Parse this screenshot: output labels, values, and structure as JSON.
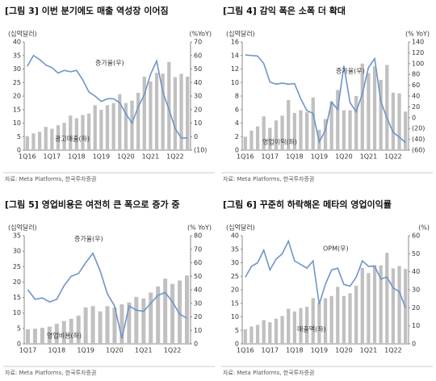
{
  "chart_data": [
    {
      "type": "combo",
      "title": "[그림 3] 이번 분기에도 매출 역성장 이어짐",
      "ylabel": "(십억달러)",
      "y2label": "(%YoY)",
      "source": "자료: Meta Platforms, 한국투자증권",
      "categories": [
        "1Q16",
        null,
        null,
        null,
        "1Q17",
        null,
        null,
        null,
        "1Q18",
        null,
        null,
        null,
        "1Q19",
        null,
        null,
        null,
        "1Q20",
        null,
        null,
        null,
        "1Q21",
        null,
        null,
        null,
        "1Q22",
        null,
        null
      ],
      "series": [
        {
          "name": "광고매출(좌)",
          "kind": "bar",
          "color": "#c0c0c0",
          "values": [
            5.2,
            6.2,
            6.8,
            8.6,
            7.9,
            9.2,
            10.1,
            12.8,
            11.8,
            13.0,
            13.5,
            16.6,
            14.9,
            16.6,
            17.4,
            20.7,
            17.4,
            18.3,
            21.2,
            27.2,
            25.4,
            28.6,
            28.3,
            32.6,
            27.0,
            28.2,
            27.2
          ]
        },
        {
          "name": "증가율(우)",
          "kind": "line",
          "axis": "y2",
          "color": "#6f94c8",
          "values": [
            52,
            60,
            57,
            53,
            51,
            47,
            49,
            48,
            49,
            42,
            33,
            30,
            26,
            28,
            28,
            25,
            17,
            10,
            22,
            31,
            46,
            56,
            33,
            20,
            6,
            -1,
            -1
          ]
        }
      ],
      "ylim": [
        0,
        40
      ],
      "yticks": [
        0,
        5,
        10,
        15,
        20,
        25,
        30,
        35,
        40
      ],
      "y2lim": [
        -10,
        70
      ],
      "y2ticks": [
        {
          "value": -10,
          "label": "(10)"
        },
        0,
        10,
        20,
        30,
        40,
        50,
        60,
        70
      ]
    },
    {
      "type": "combo",
      "title": "[그림 4] 감익 폭은 소폭 더 확대",
      "ylabel": "(십억달러)",
      "y2label": "(% YoY)",
      "source": "자료: Meta Platforms, 한국투자증권",
      "categories": [
        "1Q16",
        null,
        null,
        null,
        "1Q17",
        null,
        null,
        null,
        "1Q18",
        null,
        null,
        null,
        "1Q19",
        null,
        null,
        null,
        "1Q20",
        null,
        null,
        null,
        "1Q21",
        null,
        null,
        null,
        "1Q22",
        null,
        null
      ],
      "series": [
        {
          "name": "영업이익(좌)",
          "kind": "bar",
          "color": "#c0c0c0",
          "values": [
            2.0,
            2.9,
            3.5,
            5.0,
            3.3,
            4.4,
            5.1,
            7.4,
            5.5,
            5.9,
            5.6,
            7.8,
            3.0,
            4.6,
            7.2,
            8.9,
            5.9,
            5.9,
            8.0,
            12.8,
            11.4,
            12.4,
            10.4,
            12.6,
            8.5,
            8.4,
            5.7
          ]
        },
        {
          "name": "증가율(우)",
          "kind": "line",
          "axis": "y2",
          "color": "#6f94c8",
          "values": [
            116,
            115,
            114,
            100,
            66,
            62,
            64,
            62,
            63,
            35,
            13,
            8,
            -45,
            -23,
            29,
            15,
            96,
            28,
            11,
            44,
            93,
            109,
            30,
            -1,
            -27,
            -36,
            -46
          ]
        }
      ],
      "ylim": [
        0,
        16
      ],
      "yticks": [
        0,
        2,
        4,
        6,
        8,
        10,
        12,
        14,
        16
      ],
      "y2lim": [
        -60,
        140
      ],
      "y2ticks": [
        {
          "value": -60,
          "label": "(60)"
        },
        {
          "value": -40,
          "label": "(40)"
        },
        {
          "value": -20,
          "label": "(20)"
        },
        0,
        20,
        40,
        60,
        80,
        100,
        120,
        140
      ]
    },
    {
      "type": "combo",
      "title": "[그림 5] 영업비용은 여전히 큰 폭으로 증가 중",
      "ylabel": "(십억달러)",
      "y2label": "(% YoY)",
      "source": "자료: Meta Platforms, 한국투자증권",
      "categories": [
        "1Q17",
        null,
        null,
        null,
        "1Q18",
        null,
        null,
        null,
        "1Q19",
        null,
        null,
        null,
        "1Q20",
        null,
        null,
        null,
        "1Q21",
        null,
        null,
        null,
        "1Q22",
        null,
        null
      ],
      "series": [
        {
          "name": "영업비용(좌)",
          "kind": "bar",
          "color": "#c0c0c0",
          "values": [
            4.7,
            4.9,
            5.2,
            5.6,
            6.5,
            7.4,
            8.1,
            9.1,
            11.8,
            12.2,
            10.5,
            12.2,
            11.8,
            12.8,
            13.4,
            15.2,
            14.7,
            16.6,
            18.6,
            21.1,
            19.4,
            20.5,
            22.1
          ]
        },
        {
          "name": "증가율(우)",
          "kind": "line",
          "axis": "y2",
          "color": "#6f94c8",
          "values": [
            40,
            33,
            34,
            31,
            33,
            43,
            50,
            52,
            60,
            67,
            54,
            37,
            28,
            4,
            28,
            25,
            24,
            30,
            36,
            38,
            31,
            22,
            19
          ]
        }
      ],
      "ylim": [
        0,
        35
      ],
      "yticks": [
        0,
        5,
        10,
        15,
        20,
        25,
        30,
        35
      ],
      "y2lim": [
        0,
        80
      ],
      "y2ticks": [
        0,
        10,
        20,
        30,
        40,
        50,
        60,
        70,
        80
      ]
    },
    {
      "type": "combo",
      "title": "[그림 6] 꾸준히 하락해온 메타의 영업이익률",
      "ylabel": "(십억달러)",
      "y2label": "(%)",
      "source": "자료: Meta Platforms, 한국투자증권",
      "categories": [
        "1Q16",
        null,
        null,
        null,
        "1Q17",
        null,
        null,
        null,
        "1Q18",
        null,
        null,
        null,
        "1Q19",
        null,
        null,
        null,
        "1Q20",
        null,
        null,
        null,
        "1Q21",
        null,
        null,
        null,
        "1Q22",
        null,
        null
      ],
      "series": [
        {
          "name": "매출액(좌)",
          "kind": "bar",
          "color": "#c0c0c0",
          "values": [
            5.4,
            6.4,
            7.0,
            8.8,
            8.0,
            9.3,
            10.3,
            13.0,
            12.0,
            13.2,
            13.7,
            16.9,
            15.1,
            16.9,
            17.7,
            21.1,
            17.7,
            18.7,
            21.5,
            28.1,
            26.2,
            29.1,
            29.0,
            33.7,
            27.9,
            28.8,
            27.7
          ]
        },
        {
          "name": "OPM(우)",
          "kind": "line",
          "axis": "y2",
          "color": "#6f94c8",
          "values": [
            37,
            43,
            45,
            52,
            41,
            47,
            50,
            57,
            46,
            44,
            42,
            46,
            22,
            33,
            41,
            42,
            33,
            32,
            37,
            46,
            43,
            43,
            36,
            37,
            31,
            29,
            20
          ]
        }
      ],
      "ylim": [
        0,
        40
      ],
      "yticks": [
        0,
        5,
        10,
        15,
        20,
        25,
        30,
        35,
        40
      ],
      "y2lim": [
        0,
        60
      ],
      "y2ticks": [
        0,
        10,
        20,
        30,
        40,
        50,
        60
      ]
    }
  ]
}
